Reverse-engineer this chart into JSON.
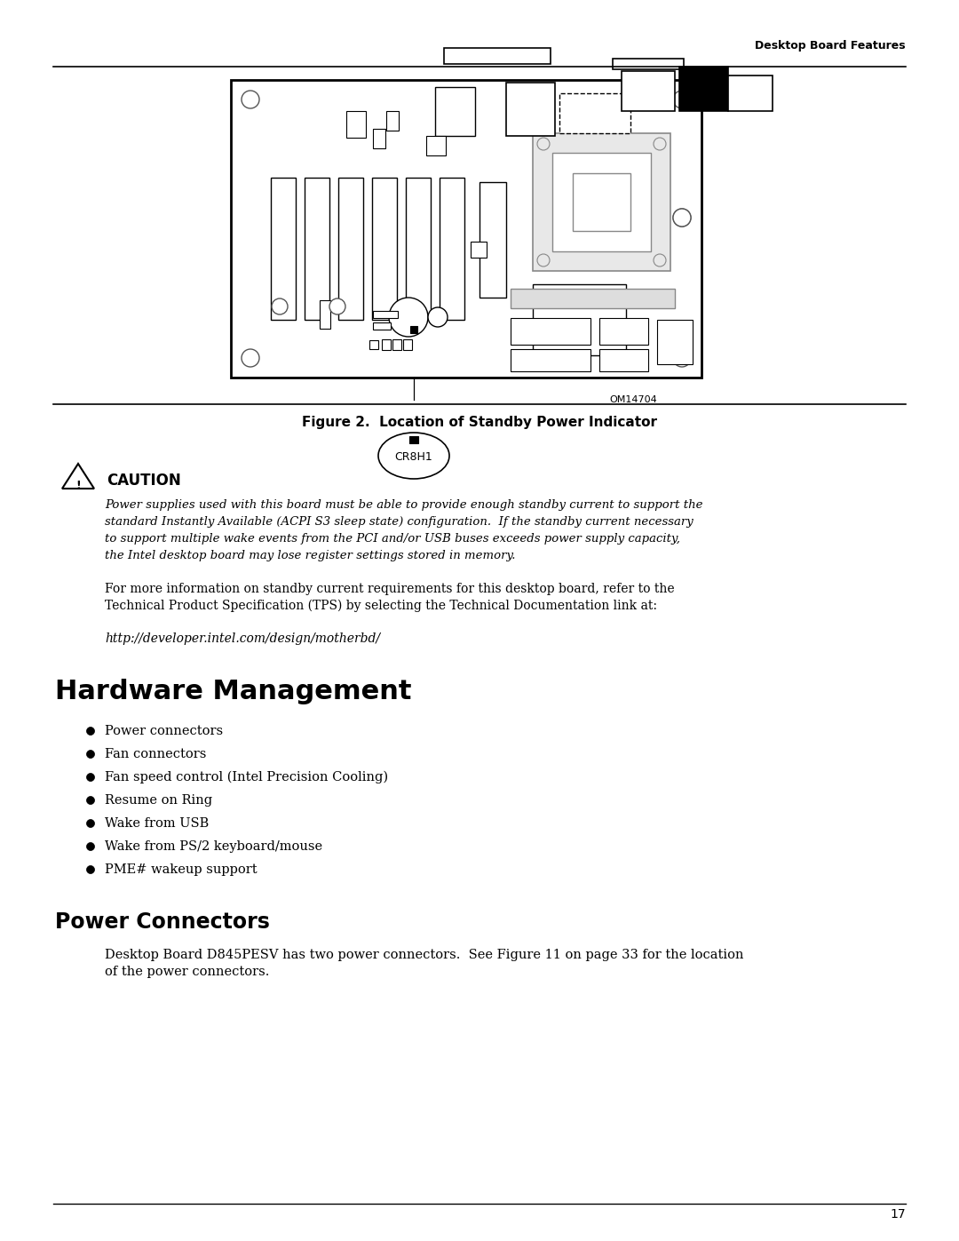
{
  "bg_color": "#ffffff",
  "header_text": "Desktop Board Features",
  "figure_caption": "Figure 2.  Location of Standby Power Indicator",
  "om_label": "OM14704",
  "caution_title": "CAUTION",
  "caution_italic_lines": [
    "Power supplies used with this board must be able to provide enough standby current to support the",
    "standard Instantly Available (ACPI S3 sleep state) configuration.  If the standby current necessary",
    "to support multiple wake events from the PCI and/or USB buses exceeds power supply capacity,",
    "the Intel desktop board may lose register settings stored in memory."
  ],
  "normal_text_lines": [
    "For more information on standby current requirements for this desktop board, refer to the",
    "Technical Product Specification (TPS) by selecting the Technical Documentation link at:"
  ],
  "url_text": "http://developer.intel.com/design/motherbd/",
  "hw_mgmt_title": "Hardware Management",
  "bullet_items": [
    "Power connectors",
    "Fan connectors",
    "Fan speed control (Intel Precision Cooling)",
    "Resume on Ring",
    "Wake from USB",
    "Wake from PS/2 keyboard/mouse",
    "PME# wakeup support"
  ],
  "power_conn_title": "Power Connectors",
  "power_conn_lines": [
    "Desktop Board D845PESV has two power connectors.  See Figure 11 on page 33 for the location",
    "of the power connectors."
  ],
  "page_number": "17",
  "cr8h1_label": "CR8H1"
}
